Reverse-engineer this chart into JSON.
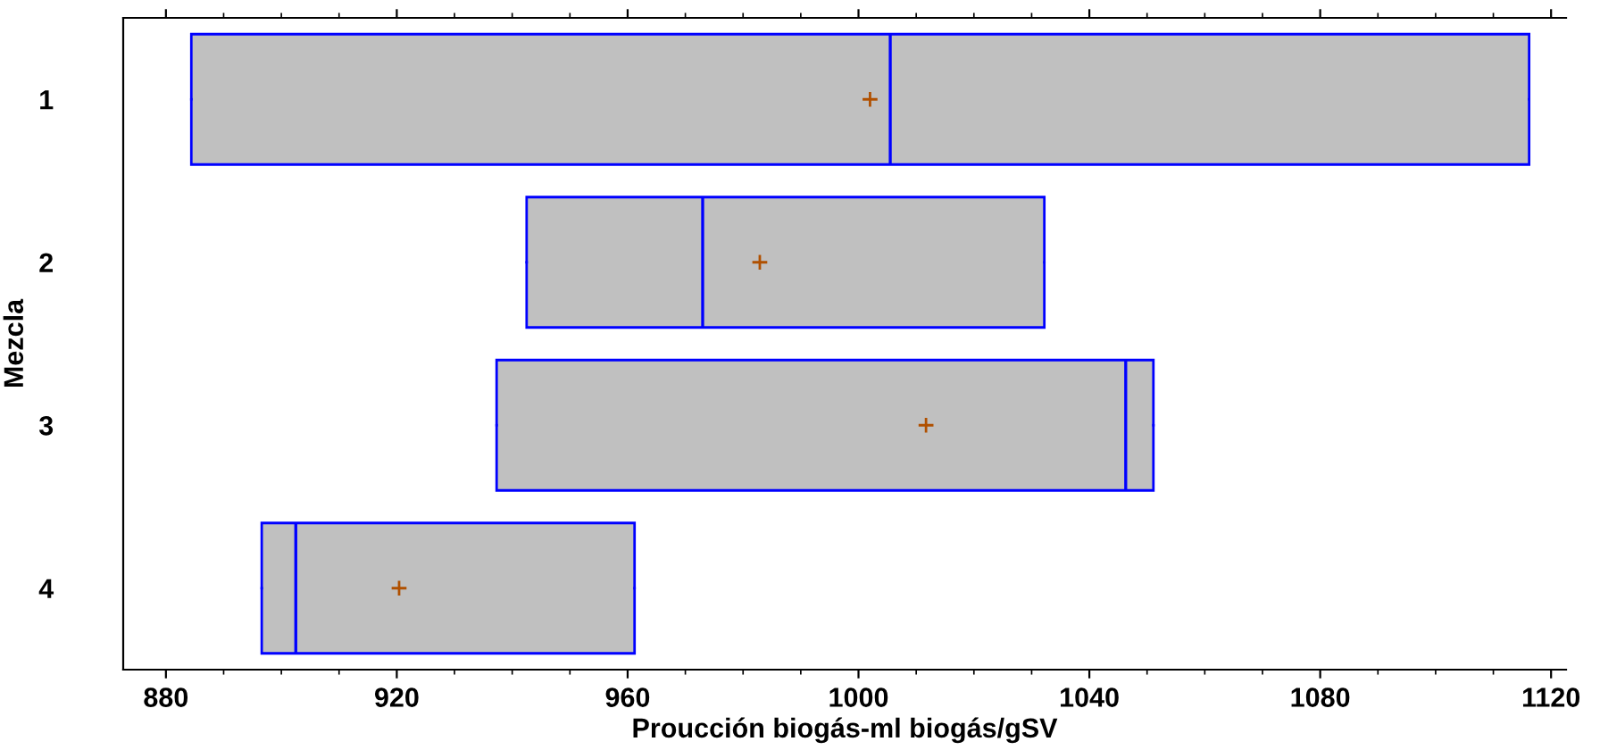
{
  "chart_data": {
    "type": "box",
    "orientation": "horizontal",
    "xlabel": "Proucción biogás-ml biogás/gSV",
    "ylabel": "Mezcla",
    "categories": [
      "1",
      "2",
      "3",
      "4"
    ],
    "boxes": [
      {
        "low": 884.4,
        "q1": 884.4,
        "median": 1005.5,
        "q3": 1116.2,
        "high": 1116.2,
        "mean": 1002
      },
      {
        "low": 942.5,
        "q1": 942.5,
        "median": 973,
        "q3": 1032.2,
        "high": 1032.2,
        "mean": 982.9
      },
      {
        "low": 937.3,
        "q1": 937.3,
        "median": 1046.3,
        "q3": 1051.1,
        "high": 1051.1,
        "mean": 1011.7
      },
      {
        "low": 896.6,
        "q1": 896.6,
        "median": 902.5,
        "q3": 961.2,
        "high": 961.2,
        "mean": 920.4
      }
    ],
    "xlim": [
      872.6,
      1122.6
    ],
    "xticks": [
      880,
      920,
      960,
      1000,
      1040,
      1080,
      1120
    ],
    "grid": false,
    "legend": false
  }
}
